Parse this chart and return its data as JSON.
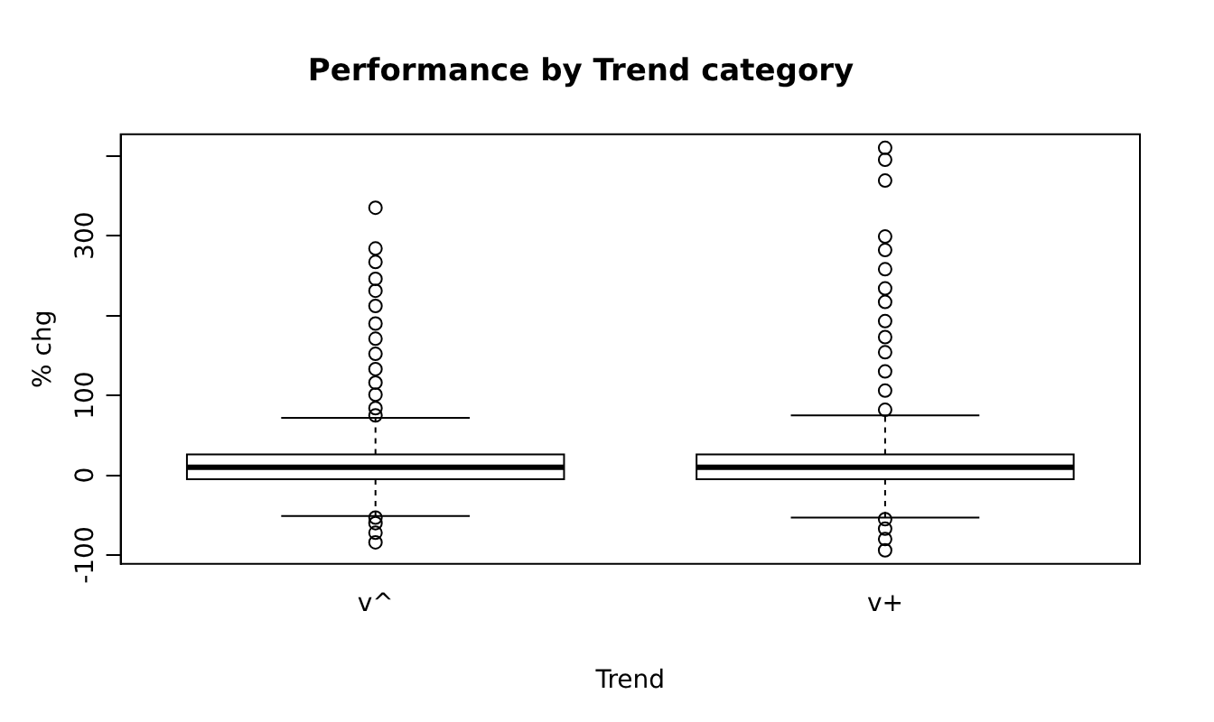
{
  "chart_data": {
    "type": "box",
    "title": "Performance by Trend category",
    "xlabel": "Trend",
    "ylabel": "% chg",
    "categories": [
      "v^",
      "v+"
    ],
    "boxes": [
      {
        "low": -51,
        "q1": -5,
        "median": 10,
        "q3": 26,
        "high": 72,
        "outliers": [
          335,
          284,
          267,
          246,
          231,
          212,
          190,
          171,
          152,
          133,
          116,
          101,
          84,
          75,
          -53,
          -60,
          -72,
          -84
        ]
      },
      {
        "low": -53,
        "q1": -5,
        "median": 10,
        "q3": 26,
        "high": 75,
        "outliers": [
          410,
          395,
          369,
          299,
          282,
          258,
          234,
          217,
          193,
          173,
          154,
          130,
          106,
          82,
          -55,
          -67,
          -80,
          -94
        ]
      }
    ],
    "ylim": [
      -111,
      427
    ],
    "yticks": [
      -100,
      0,
      100,
      {
        "value": 200,
        "label": null
      },
      300,
      {
        "value": 400,
        "label": null
      }
    ],
    "grid": false,
    "legend": false,
    "marker": "circle"
  }
}
